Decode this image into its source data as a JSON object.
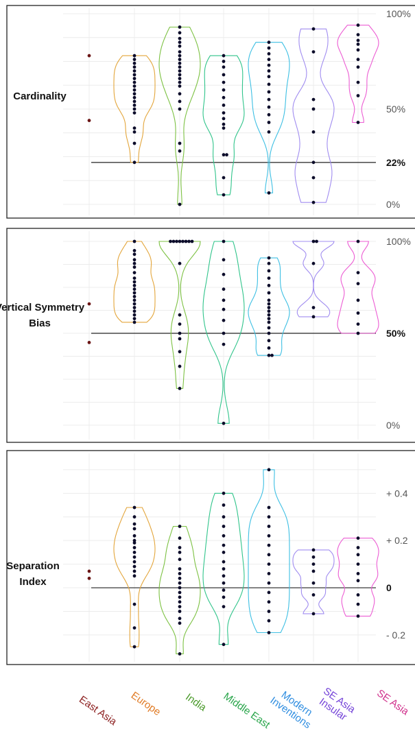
{
  "chart_data": [
    {
      "type": "violin",
      "ylabel": "Cardinality",
      "ylim": [
        0,
        100
      ],
      "grid": true,
      "ref_value": 22,
      "ticks": [
        {
          "v": 100,
          "label": "100%",
          "bold": false
        },
        {
          "v": 50,
          "label": "50%",
          "bold": false
        },
        {
          "v": 22,
          "label": "22%",
          "bold": true
        },
        {
          "v": 0,
          "label": "0%",
          "bold": false
        }
      ],
      "groups": [
        {
          "category": "East Asia",
          "values": [
            78,
            44
          ],
          "violin": false
        },
        {
          "category": "Europe",
          "values": [
            78,
            76,
            74,
            72,
            70,
            68,
            66,
            64,
            62,
            60,
            58,
            56,
            54,
            52,
            50,
            48,
            40,
            38,
            32,
            22
          ],
          "violin": true
        },
        {
          "category": "India",
          "values": [
            93,
            90,
            87,
            85,
            83,
            80,
            78,
            76,
            74,
            72,
            70,
            68,
            66,
            64,
            62,
            58,
            54,
            50,
            32,
            28,
            0
          ],
          "violin": true
        },
        {
          "category": "Middle East",
          "values": [
            78,
            75,
            72,
            68,
            64,
            60,
            56,
            52,
            48,
            45,
            42,
            40,
            26,
            26,
            14,
            5
          ],
          "violin": true
        },
        {
          "category": "Modern Inventions",
          "values": [
            85,
            82,
            79,
            76,
            73,
            70,
            67,
            63,
            59,
            55,
            51,
            47,
            43,
            38,
            6
          ],
          "violin": true
        },
        {
          "category": "SE Asia Insular",
          "values": [
            92,
            80,
            55,
            50,
            38,
            22,
            14,
            1
          ],
          "violin": true
        },
        {
          "category": "SE Asia",
          "values": [
            94,
            89,
            86,
            84,
            81,
            76,
            72,
            64,
            57,
            43
          ],
          "violin": true
        }
      ]
    },
    {
      "type": "violin",
      "ylabel": "Vertical Symmetry Bias",
      "ylim": [
        0,
        100
      ],
      "grid": true,
      "ref_value": 50,
      "ticks": [
        {
          "v": 100,
          "label": "100%",
          "bold": false
        },
        {
          "v": 50,
          "label": "50%",
          "bold": true
        },
        {
          "v": 0,
          "label": "0%",
          "bold": false
        }
      ],
      "groups": [
        {
          "category": "East Asia",
          "values": [
            66,
            45
          ],
          "violin": false
        },
        {
          "category": "Europe",
          "values": [
            100,
            95,
            93,
            90,
            88,
            86,
            83,
            80,
            78,
            76,
            74,
            72,
            70,
            68,
            66,
            64,
            62,
            60,
            58,
            56
          ],
          "violin": true
        },
        {
          "category": "India",
          "values": [
            100,
            100,
            100,
            100,
            100,
            100,
            100,
            100,
            88,
            60,
            55,
            50,
            47,
            40,
            32,
            20
          ],
          "violin": true
        },
        {
          "category": "Middle East",
          "values": [
            100,
            90,
            82,
            74,
            68,
            63,
            57,
            50,
            44,
            1
          ],
          "violin": true
        },
        {
          "category": "Modern Inventions",
          "values": [
            91,
            88,
            84,
            80,
            76,
            72,
            68,
            66,
            64,
            62,
            60,
            58,
            56,
            53,
            50,
            46,
            42,
            38,
            38
          ],
          "violin": true
        },
        {
          "category": "SE Asia Insular",
          "values": [
            100,
            100,
            88,
            64,
            59
          ],
          "violin": true
        },
        {
          "category": "SE Asia",
          "values": [
            100,
            83,
            77,
            68,
            61,
            55,
            50
          ],
          "violin": true
        }
      ]
    },
    {
      "type": "violin",
      "ylabel": "Separation Index",
      "ylim": [
        -0.27,
        0.52
      ],
      "grid": true,
      "ref_value": 0,
      "ticks": [
        {
          "v": 0.4,
          "label": "+ 0.4",
          "bold": false
        },
        {
          "v": 0.2,
          "label": "+ 0.2",
          "bold": false
        },
        {
          "v": 0,
          "label": "0",
          "bold": true
        },
        {
          "v": -0.2,
          "label": "- 0.2",
          "bold": false
        }
      ],
      "groups": [
        {
          "category": "East Asia",
          "values": [
            0.07,
            0.04
          ],
          "violin": false
        },
        {
          "category": "Europe",
          "values": [
            0.34,
            0.3,
            0.27,
            0.25,
            0.22,
            0.2,
            0.19,
            0.17,
            0.15,
            0.13,
            0.11,
            0.09,
            0.07,
            0.05,
            -0.07,
            -0.17,
            -0.25
          ],
          "violin": true
        },
        {
          "category": "India",
          "values": [
            0.26,
            0.21,
            0.17,
            0.15,
            0.12,
            0.08,
            0.06,
            0.04,
            0.02,
            0.0,
            -0.02,
            -0.04,
            -0.06,
            -0.08,
            -0.1,
            -0.13,
            -0.15,
            -0.28
          ],
          "violin": true
        },
        {
          "category": "Middle East",
          "values": [
            0.4,
            0.35,
            0.3,
            0.26,
            0.22,
            0.18,
            0.15,
            0.11,
            0.08,
            0.05,
            0.02,
            -0.01,
            -0.04,
            -0.08,
            -0.24
          ],
          "violin": true
        },
        {
          "category": "Modern Inventions",
          "values": [
            0.5,
            0.34,
            0.3,
            0.26,
            0.22,
            0.18,
            0.14,
            0.1,
            0.06,
            0.02,
            -0.02,
            -0.06,
            -0.1,
            -0.14,
            -0.19
          ],
          "violin": true
        },
        {
          "category": "SE Asia Insular",
          "values": [
            0.16,
            0.13,
            0.1,
            0.07,
            0.02,
            -0.03,
            -0.11
          ],
          "violin": true
        },
        {
          "category": "SE Asia",
          "values": [
            0.21,
            0.17,
            0.14,
            0.1,
            0.06,
            0.03,
            -0.03,
            -0.07,
            -0.12
          ],
          "violin": true
        }
      ]
    }
  ],
  "categories": [
    {
      "lines": [
        "East Asia"
      ],
      "color": "#8b1e1e"
    },
    {
      "lines": [
        "Europe"
      ],
      "color": "#e07b25"
    },
    {
      "lines": [
        "India"
      ],
      "color": "#4a9a2a"
    },
    {
      "lines": [
        "Middle East"
      ],
      "color": "#28a54a"
    },
    {
      "lines": [
        "Modern",
        "Inventions"
      ],
      "color": "#2e8de0"
    },
    {
      "lines": [
        "SE Asia",
        "Insular"
      ],
      "color": "#7443d8"
    },
    {
      "lines": [
        "SE Asia"
      ],
      "color": "#d0318c"
    }
  ],
  "violin_colors": [
    "#8b1e1e",
    "#e3a53a",
    "#7cc142",
    "#2fc48a",
    "#3dbfe3",
    "#a08cf0",
    "#ec5cd3"
  ]
}
